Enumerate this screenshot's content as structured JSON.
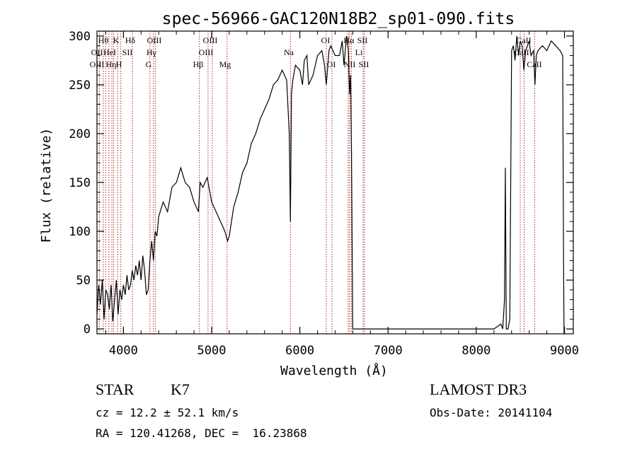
{
  "chart_data": {
    "type": "line",
    "title": "spec-56966-GAC120N18B2_sp01-090.fits",
    "xlabel": "Wavelength (Å)",
    "ylabel": "Flux (relative)",
    "xlim": [
      3700,
      9100
    ],
    "ylim": [
      -5,
      305
    ],
    "xticks": [
      4000,
      5000,
      6000,
      7000,
      8000,
      9000
    ],
    "yticks": [
      0,
      50,
      100,
      150,
      200,
      250,
      300
    ],
    "series": [
      {
        "name": "flux",
        "x": [
          3700,
          3720,
          3740,
          3760,
          3780,
          3800,
          3820,
          3840,
          3860,
          3880,
          3900,
          3920,
          3940,
          3960,
          3980,
          4000,
          4020,
          4040,
          4060,
          4080,
          4100,
          4120,
          4140,
          4160,
          4180,
          4200,
          4220,
          4240,
          4260,
          4280,
          4300,
          4320,
          4340,
          4360,
          4380,
          4400,
          4450,
          4500,
          4550,
          4600,
          4650,
          4700,
          4750,
          4800,
          4850,
          4870,
          4900,
          4950,
          5000,
          5050,
          5100,
          5150,
          5180,
          5200,
          5250,
          5300,
          5350,
          5400,
          5450,
          5500,
          5550,
          5600,
          5650,
          5700,
          5750,
          5800,
          5850,
          5880,
          5893,
          5905,
          5920,
          5950,
          6000,
          6030,
          6050,
          6080,
          6100,
          6150,
          6200,
          6250,
          6280,
          6300,
          6330,
          6350,
          6400,
          6450,
          6480,
          6500,
          6530,
          6550,
          6563,
          6575,
          6585,
          6600,
          6620,
          6650,
          6700,
          6800,
          7000,
          7200,
          7400,
          7600,
          7800,
          8000,
          8200,
          8280,
          8300,
          8320,
          8330,
          8340,
          8360,
          8380,
          8400,
          8420,
          8440,
          8460,
          8480,
          8500,
          8520,
          8540,
          8560,
          8580,
          8600,
          8620,
          8650,
          8665,
          8680,
          8700,
          8750,
          8800,
          8850,
          8900,
          8950,
          8980,
          8990,
          8995,
          9000
        ],
        "y": [
          15,
          45,
          25,
          50,
          10,
          40,
          35,
          20,
          45,
          8,
          30,
          50,
          15,
          40,
          30,
          45,
          35,
          55,
          40,
          45,
          60,
          50,
          65,
          55,
          70,
          50,
          75,
          60,
          35,
          40,
          70,
          90,
          70,
          100,
          95,
          115,
          130,
          120,
          145,
          150,
          165,
          150,
          145,
          130,
          120,
          150,
          145,
          155,
          130,
          120,
          110,
          100,
          90,
          95,
          125,
          140,
          160,
          170,
          190,
          200,
          215,
          225,
          235,
          250,
          255,
          265,
          255,
          200,
          110,
          240,
          255,
          270,
          265,
          250,
          275,
          280,
          250,
          260,
          280,
          285,
          270,
          250,
          285,
          290,
          280,
          280,
          295,
          270,
          300,
          285,
          240,
          260,
          180,
          0,
          0,
          0,
          0,
          0,
          0,
          0,
          0,
          0,
          0,
          0,
          0,
          5,
          0,
          30,
          165,
          0,
          0,
          10,
          285,
          290,
          275,
          300,
          280,
          295,
          290,
          265,
          285,
          290,
          295,
          280,
          285,
          250,
          280,
          285,
          290,
          285,
          295,
          290,
          285,
          280,
          60,
          -5,
          -5
        ]
      }
    ],
    "line_names": [
      "Hθ",
      "Hη",
      "K",
      "H",
      "Hδ",
      "Hγ",
      "Hβ",
      "Mg",
      "Na",
      "Hα",
      "OII",
      "HeI",
      "SII",
      "OIII",
      "OIII",
      "OIII",
      "OI",
      "NII",
      "SII",
      "NII",
      "SII",
      "Li",
      "CaII",
      "CaII",
      "CaII"
    ],
    "line_labels": [
      {
        "text": "Hθ",
        "row": 1
      },
      {
        "text": "K",
        "row": 1
      },
      {
        "text": "Hδ",
        "row": 1
      },
      {
        "text": "OIII",
        "row": 1
      },
      {
        "text": "OIII",
        "row": 1
      },
      {
        "text": "Na",
        "row": 2
      },
      {
        "text": "OI",
        "row": 1
      },
      {
        "text": "Hα",
        "row": 1
      },
      {
        "text": "SII",
        "row": 1
      },
      {
        "text": "CaII",
        "row": 1
      },
      {
        "text": "OII",
        "row": 2
      },
      {
        "text": "HeI",
        "row": 2
      },
      {
        "text": "SII",
        "row": 2
      },
      {
        "text": "Hγ",
        "row": 2
      },
      {
        "text": "OIII",
        "row": 2
      },
      {
        "text": "Li",
        "row": 2
      },
      {
        "text": "CaII",
        "row": 2
      },
      {
        "text": "OIII",
        "row": 3
      },
      {
        "text": "Hη",
        "row": 3
      },
      {
        "text": "H",
        "row": 3
      },
      {
        "text": "G",
        "row": 3
      },
      {
        "text": "Hβ",
        "row": 3
      },
      {
        "text": "Mg",
        "row": 3
      },
      {
        "text": "OI",
        "row": 3
      },
      {
        "text": "NII",
        "row": 3
      },
      {
        "text": "SII",
        "row": 3
      },
      {
        "text": "CaII",
        "row": 3
      }
    ],
    "line_wavelengths": [
      3727,
      3771,
      3798,
      3835,
      3869,
      3889,
      3934,
      3970,
      4102,
      4300,
      4341,
      4363,
      4861,
      4959,
      5007,
      5175,
      5893,
      6300,
      6364,
      6548,
      6563,
      6584,
      6717,
      6731,
      8498,
      8542,
      8662
    ]
  },
  "info": {
    "object_class": "STAR",
    "subclass": "K7",
    "survey": "LAMOST DR3",
    "redshift_line": "cz = 12.2 ± 52.1 km/s",
    "obs_date_line": "Obs-Date: 20141104",
    "coords_line": "RA = 120.41268, DEC =  16.23868"
  }
}
